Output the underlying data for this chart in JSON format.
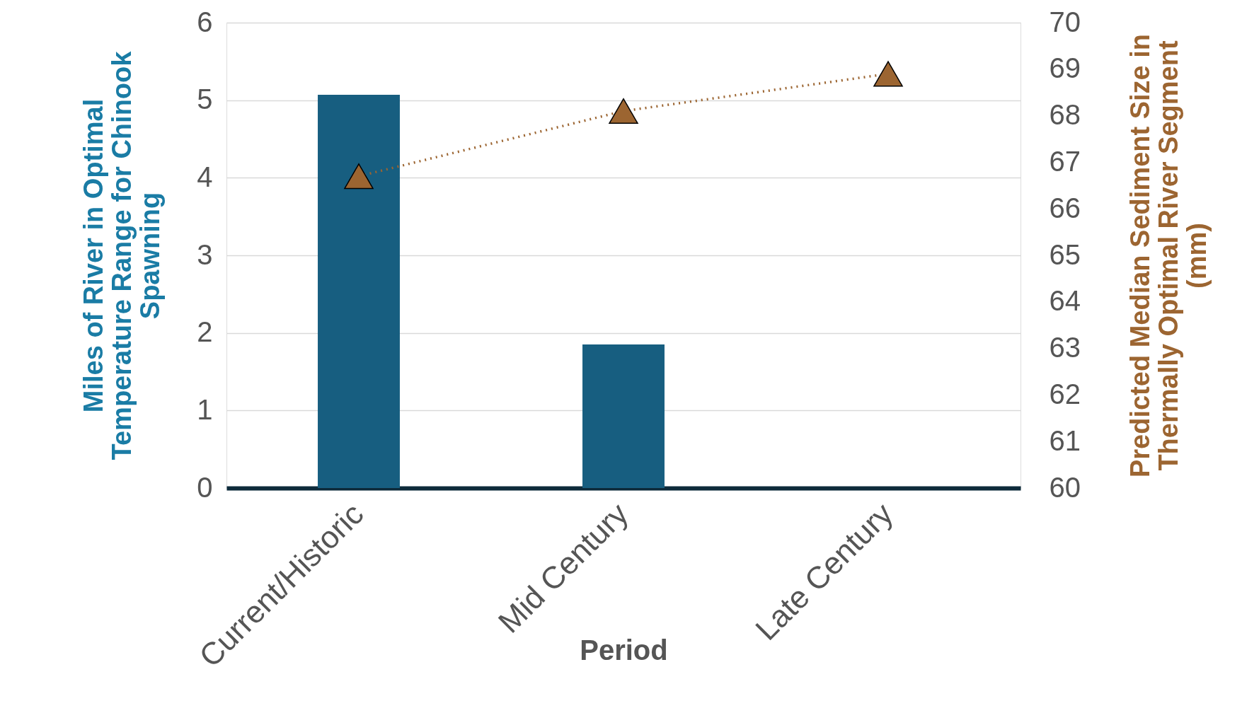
{
  "chart_data": {
    "type": "bar",
    "xlabel": "Period",
    "ylabel": "Miles of River in Optimal\nTemperature Range for Chinook\nSpawning",
    "y2label": "Predicted Median Sediment Size in\nThermally Optimal River Segment\n(mm)",
    "categories": [
      "Current/Historic",
      "Mid Century",
      "Late Century"
    ],
    "series": [
      {
        "color": "#175e80",
        "values": [
          5.07,
          1.85,
          0
        ]
      },
      {
        "type": "line",
        "axis": "y2",
        "color": "#9c6531",
        "marker": "triangle",
        "line_style": "dotted",
        "values": [
          66.7,
          68.1,
          68.9
        ]
      }
    ],
    "ylim": [
      0,
      6
    ],
    "yticks": [
      0,
      1,
      2,
      3,
      4,
      5,
      6
    ],
    "y2lim": [
      60,
      70
    ],
    "y2ticks": [
      60,
      61,
      62,
      63,
      64,
      65,
      66,
      67,
      68,
      69,
      70
    ],
    "grid": "y"
  }
}
